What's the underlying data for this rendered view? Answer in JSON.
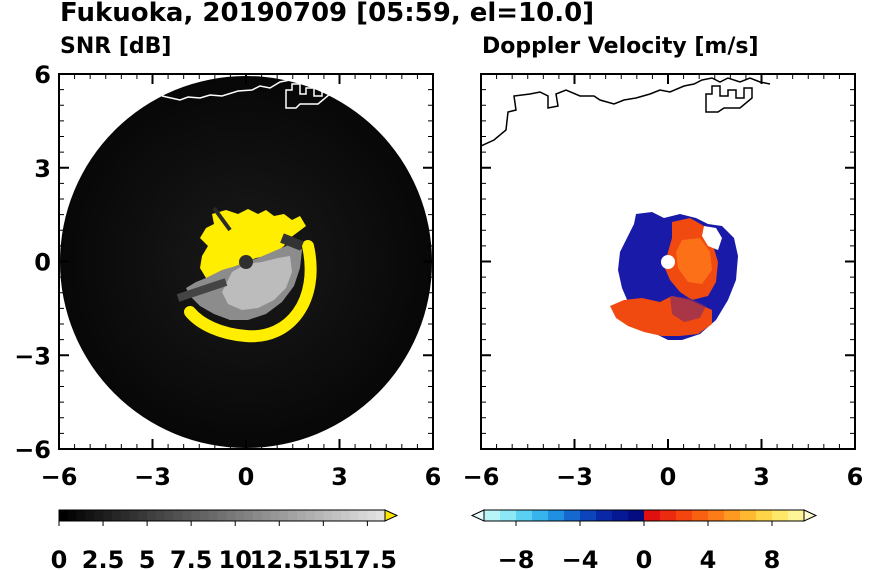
{
  "title": "Fukuoka, 20190709 [05:59, el=10.0]",
  "panels": [
    {
      "subtitle": "SNR [dB]"
    },
    {
      "subtitle": "Doppler Velocity [m/s]"
    }
  ],
  "chart_data": [
    {
      "type": "heatmap",
      "title": "SNR [dB]",
      "xlim": [
        -6,
        6
      ],
      "ylim": [
        -6,
        6
      ],
      "xticks": [
        "−6",
        "−3",
        "0",
        "3",
        "6"
      ],
      "yticks": [
        "6",
        "3",
        "0",
        "−3",
        "−6"
      ],
      "colorbar": {
        "range": [
          0,
          18.5
        ],
        "tick_labels": [
          "0",
          "2.5",
          "5",
          "7.5",
          "10",
          "12.5",
          "15",
          "17.5"
        ],
        "colormap": "black-to-white",
        "extend": "max",
        "extend_color": "#ffe800"
      }
    },
    {
      "type": "heatmap",
      "title": "Doppler Velocity [m/s]",
      "xlim": [
        -6,
        6
      ],
      "ylim": [
        -6,
        6
      ],
      "xticks": [
        "−6",
        "−3",
        "0",
        "3",
        "6"
      ],
      "colorbar": {
        "range": [
          -10,
          10
        ],
        "tick_labels": [
          "−8",
          "−4",
          "0",
          "4",
          "8"
        ],
        "colormap": "cyan-blue-red-yellow",
        "extend": "both"
      }
    }
  ],
  "colors": {
    "snr_background": "#0d0d0d",
    "snr_saturated": "#ffee00",
    "doppler_negative": "#1a1aa8",
    "doppler_positive": "#f04a10",
    "coastline_left": "#ffffff",
    "coastline_right": "#000000"
  }
}
